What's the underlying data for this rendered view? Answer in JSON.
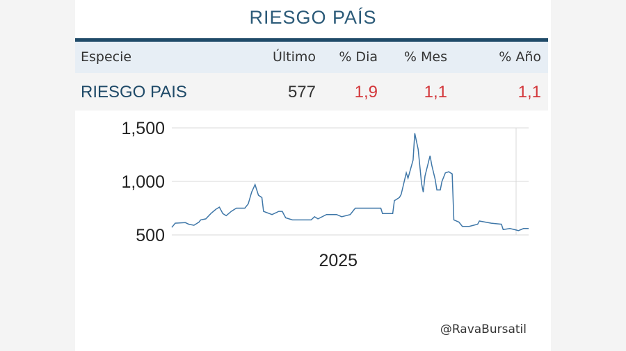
{
  "title": "RIESGO PAÍS",
  "table": {
    "headers": [
      "Especie",
      "Último",
      "% Dia",
      "% Mes",
      "% Año"
    ],
    "row": {
      "especie": "RIESGO PAIS",
      "ultimo": "577",
      "dia": "1,9",
      "mes": "1,1",
      "anio": "1,1"
    }
  },
  "colors": {
    "title": "#2b5a78",
    "line": "#3f77a8",
    "negative_change": "#d3363a",
    "header_bg": "#e7eef5"
  },
  "chart_data": {
    "type": "line",
    "title": "",
    "xlabel": "",
    "ylabel": "",
    "x_tick_labels": [
      {
        "x": 2025.0,
        "label": "2025"
      }
    ],
    "y_ticks": [
      {
        "y": 500,
        "label": "500"
      },
      {
        "y": 1000,
        "label": "1,000"
      },
      {
        "y": 1500,
        "label": "1,500"
      }
    ],
    "xlim": [
      2024.0,
      2026.1
    ],
    "ylim": [
      500,
      1500
    ],
    "grid": "horizontal",
    "series": [
      {
        "points": [
          [
            2024.0,
            570
          ],
          [
            2024.02,
            610
          ],
          [
            2024.08,
            615
          ],
          [
            2024.1,
            600
          ],
          [
            2024.13,
            590
          ],
          [
            2024.16,
            620
          ],
          [
            2024.17,
            640
          ],
          [
            2024.2,
            650
          ],
          [
            2024.23,
            700
          ],
          [
            2024.26,
            740
          ],
          [
            2024.28,
            760
          ],
          [
            2024.3,
            700
          ],
          [
            2024.32,
            680
          ],
          [
            2024.35,
            720
          ],
          [
            2024.38,
            750
          ],
          [
            2024.43,
            750
          ],
          [
            2024.45,
            790
          ],
          [
            2024.47,
            900
          ],
          [
            2024.49,
            970
          ],
          [
            2024.51,
            870
          ],
          [
            2024.53,
            850
          ],
          [
            2024.54,
            720
          ],
          [
            2024.59,
            690
          ],
          [
            2024.63,
            720
          ],
          [
            2024.65,
            720
          ],
          [
            2024.67,
            660
          ],
          [
            2024.71,
            640
          ],
          [
            2024.82,
            640
          ],
          [
            2024.84,
            670
          ],
          [
            2024.86,
            650
          ],
          [
            2024.91,
            690
          ],
          [
            2024.97,
            690
          ],
          [
            2025.0,
            670
          ],
          [
            2025.05,
            690
          ],
          [
            2025.08,
            750
          ],
          [
            2025.23,
            750
          ],
          [
            2025.24,
            700
          ],
          [
            2025.3,
            700
          ],
          [
            2025.31,
            820
          ],
          [
            2025.34,
            850
          ],
          [
            2025.35,
            880
          ],
          [
            2025.38,
            1080
          ],
          [
            2025.39,
            1030
          ],
          [
            2025.42,
            1200
          ],
          [
            2025.43,
            1450
          ],
          [
            2025.45,
            1300
          ],
          [
            2025.47,
            980
          ],
          [
            2025.48,
            900
          ],
          [
            2025.49,
            1050
          ],
          [
            2025.52,
            1240
          ],
          [
            2025.53,
            1150
          ],
          [
            2025.55,
            1020
          ],
          [
            2025.56,
            920
          ],
          [
            2025.58,
            920
          ],
          [
            2025.59,
            1000
          ],
          [
            2025.61,
            1080
          ],
          [
            2025.63,
            1090
          ],
          [
            2025.65,
            1070
          ],
          [
            2025.66,
            640
          ],
          [
            2025.69,
            620
          ],
          [
            2025.71,
            580
          ],
          [
            2025.75,
            580
          ],
          [
            2025.8,
            600
          ],
          [
            2025.81,
            630
          ],
          [
            2025.88,
            610
          ],
          [
            2025.94,
            600
          ],
          [
            2025.95,
            550
          ],
          [
            2025.99,
            560
          ],
          [
            2026.03,
            545
          ],
          [
            2026.04,
            540
          ],
          [
            2026.07,
            560
          ],
          [
            2026.1,
            560
          ]
        ]
      }
    ]
  },
  "credit": "@RavaBursatil"
}
